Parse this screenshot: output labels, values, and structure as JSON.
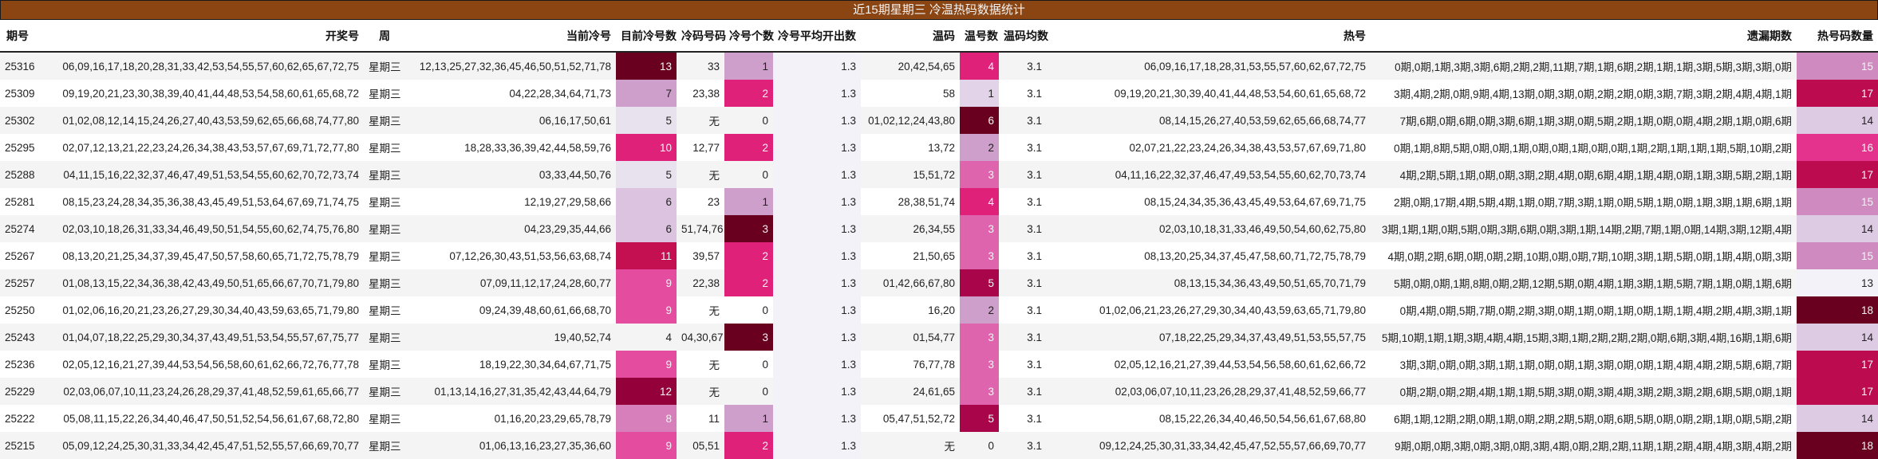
{
  "title": "近15期星期三 冷温热码数据统计",
  "headers": [
    "期号",
    "开奖号",
    "周",
    "当前冷号",
    "目前冷号数",
    "冷码号码",
    "冷号个数",
    "冷号平均开出数",
    "温码",
    "温号数",
    "温码均数",
    "热号",
    "遗漏期数",
    "热号码数量"
  ],
  "colors": {
    "title_bg": "#8B4513",
    "scale": {
      "0": "#f3f2f8",
      "1": "#dccbe2",
      "2": "#cf9fcc",
      "3": "#df64ae",
      "4": "#e0217a",
      "5": "#c40f50",
      "6": "#6a001f"
    }
  },
  "rows": [
    {
      "issue": "25316",
      "draw": "06,09,16,17,18,20,28,31,33,42,53,54,55,57,60,62,65,67,72,75",
      "weekday": "星期三",
      "cold_current": "12,13,25,27,32,36,45,46,50,51,52,71,78",
      "cold_count_now": "13",
      "cold_code": "33",
      "cold_num": "1",
      "cold_avg": "1.3",
      "warm": "20,42,54,65",
      "warm_num": "4",
      "warm_avg": "3.1",
      "hot": "06,09,16,17,18,28,31,53,55,57,60,62,67,72,75",
      "omit": "0期,0期,1期,3期,3期,6期,2期,2期,11期,7期,1期,6期,2期,1期,1期,3期,5期,3期,3期,0期",
      "hot_count": "15",
      "c_cold_now": "#6a001f",
      "c_cold_num": "#cf9fcc",
      "c_warm_num": "#e0217a",
      "c_hot_count": "#cf8ac0"
    },
    {
      "issue": "25309",
      "draw": "09,19,20,21,23,30,38,39,40,41,44,48,53,54,58,60,61,65,68,72",
      "weekday": "星期三",
      "cold_current": "04,22,28,34,64,71,73",
      "cold_count_now": "7",
      "cold_code": "23,38",
      "cold_num": "2",
      "cold_avg": "1.3",
      "warm": "58",
      "warm_num": "1",
      "warm_avg": "3.1",
      "hot": "09,19,20,21,30,39,40,41,44,48,53,54,60,61,65,68,72",
      "omit": "3期,4期,2期,0期,9期,4期,13期,0期,3期,0期,2期,2期,0期,3期,7期,3期,2期,4期,4期,1期",
      "hot_count": "17",
      "c_cold_now": "#cf9fcc",
      "c_cold_num": "#e0217a",
      "c_warm_num": "#e3d3e8",
      "c_hot_count": "#bc0c4f"
    },
    {
      "issue": "25302",
      "draw": "01,02,08,12,14,15,24,26,27,40,43,53,59,62,65,66,68,74,77,80",
      "weekday": "星期三",
      "cold_current": "06,16,17,50,61",
      "cold_count_now": "5",
      "cold_code": "无",
      "cold_num": "0",
      "cold_avg": "1.3",
      "warm": "01,02,12,24,43,80",
      "warm_num": "6",
      "warm_avg": "3.1",
      "hot": "08,14,15,26,27,40,53,59,62,65,66,68,74,77",
      "omit": "7期,6期,0期,6期,0期,3期,6期,1期,3期,0期,5期,2期,1期,0期,0期,4期,2期,1期,0期,6期",
      "hot_count": "14",
      "c_cold_now": "#e8e2ef",
      "c_cold_num": "",
      "c_warm_num": "#6a001f",
      "c_hot_count": "#dccbe2"
    },
    {
      "issue": "25295",
      "draw": "02,07,12,13,21,22,23,24,26,34,38,43,53,57,67,69,71,72,77,80",
      "weekday": "星期三",
      "cold_current": "18,28,33,36,39,42,44,58,59,76",
      "cold_count_now": "10",
      "cold_code": "12,77",
      "cold_num": "2",
      "cold_avg": "1.3",
      "warm": "13,72",
      "warm_num": "2",
      "warm_avg": "3.1",
      "hot": "02,07,21,22,23,24,26,34,38,43,53,57,67,69,71,80",
      "omit": "0期,1期,8期,5期,0期,0期,1期,0期,0期,1期,0期,0期,1期,2期,1期,1期,1期,5期,10期,2期",
      "hot_count": "16",
      "c_cold_now": "#e0217a",
      "c_cold_num": "#e0217a",
      "c_warm_num": "#cf9fcc",
      "c_hot_count": "#e3338d"
    },
    {
      "issue": "25288",
      "draw": "04,11,15,16,22,32,37,46,47,49,51,53,54,55,60,62,70,72,73,74",
      "weekday": "星期三",
      "cold_current": "03,33,44,50,76",
      "cold_count_now": "5",
      "cold_code": "无",
      "cold_num": "0",
      "cold_avg": "1.3",
      "warm": "15,51,72",
      "warm_num": "3",
      "warm_avg": "3.1",
      "hot": "04,11,16,22,32,37,46,47,49,53,54,55,60,62,70,73,74",
      "omit": "4期,2期,5期,1期,0期,0期,3期,2期,4期,0期,6期,4期,1期,4期,0期,1期,3期,5期,2期,1期",
      "hot_count": "17",
      "c_cold_now": "#e8e2ef",
      "c_cold_num": "",
      "c_warm_num": "#df64ae",
      "c_hot_count": "#bc0c4f"
    },
    {
      "issue": "25281",
      "draw": "08,15,23,24,28,34,35,36,38,43,45,49,51,53,64,67,69,71,74,75",
      "weekday": "星期三",
      "cold_current": "12,19,27,29,58,66",
      "cold_count_now": "6",
      "cold_code": "23",
      "cold_num": "1",
      "cold_avg": "1.3",
      "warm": "28,38,51,74",
      "warm_num": "4",
      "warm_avg": "3.1",
      "hot": "08,15,24,34,35,36,43,45,49,53,64,67,69,71,75",
      "omit": "2期,0期,17期,4期,5期,4期,1期,0期,7期,3期,1期,0期,5期,1期,0期,1期,3期,1期,6期,1期",
      "hot_count": "15",
      "c_cold_now": "#dcc4e0",
      "c_cold_num": "#cf9fcc",
      "c_warm_num": "#e0217a",
      "c_hot_count": "#cf8ac0"
    },
    {
      "issue": "25274",
      "draw": "02,03,10,18,26,31,33,34,46,49,50,51,54,55,60,62,74,75,76,80",
      "weekday": "星期三",
      "cold_current": "04,23,29,35,44,66",
      "cold_count_now": "6",
      "cold_code": "51,74,76",
      "cold_num": "3",
      "cold_avg": "1.3",
      "warm": "26,34,55",
      "warm_num": "3",
      "warm_avg": "3.1",
      "hot": "02,03,10,18,31,33,46,49,50,54,60,62,75,80",
      "omit": "3期,1期,1期,0期,5期,0期,3期,6期,0期,3期,1期,14期,2期,7期,1期,0期,14期,3期,12期,4期",
      "hot_count": "14",
      "c_cold_now": "#dcc4e0",
      "c_cold_num": "#6a001f",
      "c_warm_num": "#df64ae",
      "c_hot_count": "#dccbe2"
    },
    {
      "issue": "25267",
      "draw": "08,13,20,21,25,34,37,39,45,47,50,57,58,60,65,71,72,75,78,79",
      "weekday": "星期三",
      "cold_current": "07,12,26,30,43,51,53,56,63,68,74",
      "cold_count_now": "11",
      "cold_code": "39,57",
      "cold_num": "2",
      "cold_avg": "1.3",
      "warm": "21,50,65",
      "warm_num": "3",
      "warm_avg": "3.1",
      "hot": "08,13,20,25,34,37,45,47,58,60,71,72,75,78,79",
      "omit": "4期,0期,2期,6期,0期,0期,2期,10期,0期,0期,7期,10期,3期,1期,5期,0期,1期,4期,0期,3期",
      "hot_count": "15",
      "c_cold_now": "#c40f50",
      "c_cold_num": "#e0217a",
      "c_warm_num": "#df64ae",
      "c_hot_count": "#cf8ac0"
    },
    {
      "issue": "25257",
      "draw": "01,08,13,15,22,34,36,38,42,43,49,50,51,65,66,67,70,71,79,80",
      "weekday": "星期三",
      "cold_current": "07,09,11,12,17,24,28,60,77",
      "cold_count_now": "9",
      "cold_code": "22,38",
      "cold_num": "2",
      "cold_avg": "1.3",
      "warm": "01,42,66,67,80",
      "warm_num": "5",
      "warm_avg": "3.1",
      "hot": "08,13,15,34,36,43,49,50,51,65,70,71,79",
      "omit": "5期,0期,0期,1期,8期,0期,2期,12期,5期,0期,4期,1期,3期,1期,5期,7期,1期,0期,1期,6期",
      "hot_count": "13",
      "c_cold_now": "#e34c9f",
      "c_cold_num": "#e0217a",
      "c_warm_num": "#a8054a",
      "c_hot_count": "#f3f2f8"
    },
    {
      "issue": "25250",
      "draw": "01,02,06,16,20,21,23,26,27,29,30,34,40,43,59,63,65,71,79,80",
      "weekday": "星期三",
      "cold_current": "09,24,39,48,60,61,66,68,70",
      "cold_count_now": "9",
      "cold_code": "无",
      "cold_num": "0",
      "cold_avg": "1.3",
      "warm": "16,20",
      "warm_num": "2",
      "warm_avg": "3.1",
      "hot": "01,02,06,21,23,26,27,29,30,34,40,43,59,63,65,71,79,80",
      "omit": "0期,4期,0期,5期,7期,0期,2期,3期,0期,1期,0期,1期,0期,1期,1期,4期,2期,4期,3期,1期",
      "hot_count": "18",
      "c_cold_now": "#e34c9f",
      "c_cold_num": "",
      "c_warm_num": "#cf9fcc",
      "c_hot_count": "#6a001f"
    },
    {
      "issue": "25243",
      "draw": "01,04,07,18,22,25,29,30,34,37,43,49,51,53,54,55,57,67,75,77",
      "weekday": "星期三",
      "cold_current": "19,40,52,74",
      "cold_count_now": "4",
      "cold_code": "04,30,67",
      "cold_num": "3",
      "cold_avg": "1.3",
      "warm": "01,54,77",
      "warm_num": "3",
      "warm_avg": "3.1",
      "hot": "07,18,22,25,29,34,37,43,49,51,53,55,57,75",
      "omit": "5期,10期,1期,1期,3期,4期,4期,15期,3期,1期,2期,2期,2期,0期,6期,3期,4期,16期,1期,6期",
      "hot_count": "14",
      "c_cold_now": "",
      "c_cold_num": "#6a001f",
      "c_warm_num": "#df64ae",
      "c_hot_count": "#dccbe2"
    },
    {
      "issue": "25236",
      "draw": "02,05,12,16,21,27,39,44,53,54,56,58,60,61,62,66,72,76,77,78",
      "weekday": "星期三",
      "cold_current": "18,19,22,30,34,64,67,71,75",
      "cold_count_now": "9",
      "cold_code": "无",
      "cold_num": "0",
      "cold_avg": "1.3",
      "warm": "76,77,78",
      "warm_num": "3",
      "warm_avg": "3.1",
      "hot": "02,05,12,16,21,27,39,44,53,54,56,58,60,61,62,66,72",
      "omit": "3期,3期,0期,0期,3期,1期,1期,0期,0期,1期,3期,0期,0期,1期,4期,4期,2期,5期,6期,7期",
      "hot_count": "17",
      "c_cold_now": "#e34c9f",
      "c_cold_num": "",
      "c_warm_num": "#df64ae",
      "c_hot_count": "#bc0c4f"
    },
    {
      "issue": "25229",
      "draw": "02,03,06,07,10,11,23,24,26,28,29,37,41,48,52,59,61,65,66,77",
      "weekday": "星期三",
      "cold_current": "01,13,14,16,27,31,35,42,43,44,64,79",
      "cold_count_now": "12",
      "cold_code": "无",
      "cold_num": "0",
      "cold_avg": "1.3",
      "warm": "24,61,65",
      "warm_num": "3",
      "warm_avg": "3.1",
      "hot": "02,03,06,07,10,11,23,26,28,29,37,41,48,52,59,66,77",
      "omit": "0期,2期,0期,2期,4期,1期,1期,5期,3期,0期,3期,4期,3期,2期,3期,2期,6期,5期,0期,1期",
      "hot_count": "17",
      "c_cold_now": "#940039",
      "c_cold_num": "",
      "c_warm_num": "#df64ae",
      "c_hot_count": "#bc0c4f"
    },
    {
      "issue": "25222",
      "draw": "05,08,11,15,22,26,34,40,46,47,50,51,52,54,56,61,67,68,72,80",
      "weekday": "星期三",
      "cold_current": "01,16,20,23,29,65,78,79",
      "cold_count_now": "8",
      "cold_code": "11",
      "cold_num": "1",
      "cold_avg": "1.3",
      "warm": "05,47,51,52,72",
      "warm_num": "5",
      "warm_avg": "3.1",
      "hot": "08,15,22,26,34,40,46,50,54,56,61,67,68,80",
      "omit": "6期,1期,12期,2期,0期,1期,0期,2期,2期,5期,0期,6期,5期,0期,0期,2期,1期,0期,5期,2期",
      "hot_count": "14",
      "c_cold_now": "#d77fbb",
      "c_cold_num": "#cf9fcc",
      "c_warm_num": "#a8054a",
      "c_hot_count": "#dccbe2"
    },
    {
      "issue": "25215",
      "draw": "05,09,12,24,25,30,31,33,34,42,45,47,51,52,55,57,66,69,70,77",
      "weekday": "星期三",
      "cold_current": "01,06,13,16,23,27,35,36,60",
      "cold_count_now": "9",
      "cold_code": "05,51",
      "cold_num": "2",
      "cold_avg": "1.3",
      "warm": "无",
      "warm_num": "0",
      "warm_avg": "3.1",
      "hot": "09,12,24,25,30,31,33,34,42,45,47,52,55,57,66,69,70,77",
      "omit": "9期,0期,0期,3期,0期,3期,0期,3期,4期,0期,2期,2期,11期,1期,2期,4期,4期,3期,4期,2期",
      "hot_count": "18",
      "c_cold_now": "#e34c9f",
      "c_cold_num": "#e0217a",
      "c_warm_num": "",
      "c_hot_count": "#6a001f"
    }
  ]
}
